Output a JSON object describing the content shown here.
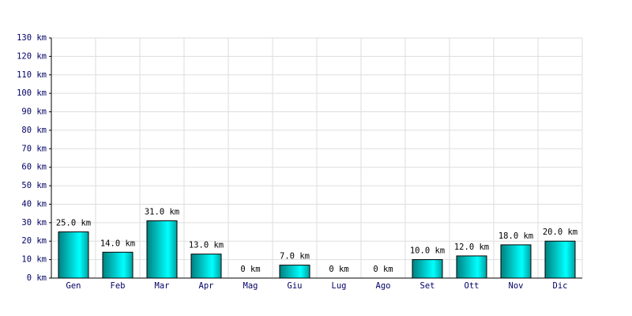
{
  "chart_data": {
    "type": "bar",
    "categories": [
      "Gen",
      "Feb",
      "Mar",
      "Apr",
      "Mag",
      "Giu",
      "Lug",
      "Ago",
      "Set",
      "Ott",
      "Nov",
      "Dic"
    ],
    "values": [
      25,
      14,
      31,
      13,
      0,
      7,
      0,
      0,
      10,
      12,
      18,
      20
    ],
    "value_labels": [
      "25.0 km",
      "14.0 km",
      "31.0 km",
      "13.0 km",
      "0 km",
      "7.0 km",
      "0 km",
      "0 km",
      "10.0 km",
      "12.0 km",
      "18.0 km",
      "20.0 km"
    ],
    "color": "#00cccc",
    "ylim": [
      0,
      130
    ],
    "yticks": [
      {
        "value": 0,
        "label": "0 km"
      },
      {
        "value": 10,
        "label": "10 km"
      },
      {
        "value": 20,
        "label": "20 km"
      },
      {
        "value": 30,
        "label": "30 km"
      },
      {
        "value": 40,
        "label": "40 km"
      },
      {
        "value": 50,
        "label": "50 km"
      },
      {
        "value": 60,
        "label": "60 km"
      },
      {
        "value": 70,
        "label": "70 km"
      },
      {
        "value": 80,
        "label": "80 km"
      },
      {
        "value": 90,
        "label": "90 km"
      },
      {
        "value": 100,
        "label": "100 km"
      },
      {
        "value": 110,
        "label": "110 km"
      },
      {
        "value": 120,
        "label": "120 km"
      },
      {
        "value": 130,
        "label": "130 km"
      }
    ],
    "grid": true
  }
}
